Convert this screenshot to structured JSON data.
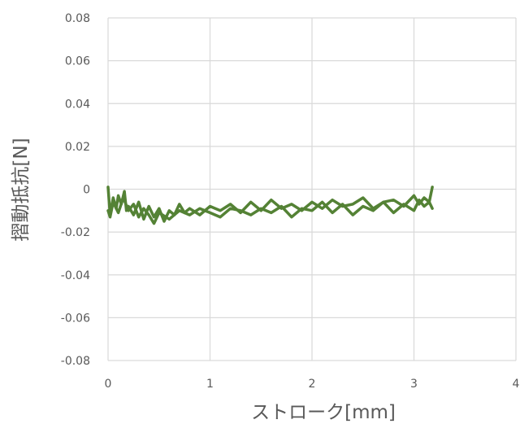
{
  "chart_data": {
    "type": "line",
    "xlabel": "ストローク[mm]",
    "ylabel": "摺動抵抗[N]",
    "xlim": [
      0,
      4
    ],
    "ylim": [
      -0.08,
      0.08
    ],
    "xticks": [
      "0",
      "1",
      "2",
      "3",
      "4"
    ],
    "yticks": [
      "0.08",
      "0.06",
      "0.04",
      "0.02",
      "0",
      "-0.02",
      "-0.04",
      "-0.06",
      "-0.08"
    ],
    "grid": true,
    "line_color": "#548235",
    "series": [
      {
        "x": [
          0.0,
          0.02,
          0.05,
          0.08,
          0.1,
          0.13,
          0.16,
          0.18,
          0.2,
          0.25,
          0.3,
          0.35,
          0.4,
          0.45,
          0.5,
          0.55,
          0.6,
          0.65,
          0.7,
          0.75,
          0.8,
          0.9,
          1.0,
          1.1,
          1.2,
          1.3,
          1.4,
          1.5,
          1.6,
          1.7,
          1.8,
          1.9,
          2.0,
          2.1,
          2.2,
          2.3,
          2.4,
          2.5,
          2.6,
          2.7,
          2.8,
          2.9,
          3.0,
          3.05,
          3.1,
          3.15,
          3.18
        ],
        "y": [
          0.001,
          -0.012,
          -0.004,
          -0.009,
          -0.003,
          -0.007,
          -0.001,
          -0.01,
          -0.008,
          -0.012,
          -0.006,
          -0.014,
          -0.008,
          -0.013,
          -0.009,
          -0.015,
          -0.01,
          -0.012,
          -0.007,
          -0.011,
          -0.009,
          -0.012,
          -0.008,
          -0.01,
          -0.007,
          -0.011,
          -0.006,
          -0.01,
          -0.005,
          -0.009,
          -0.007,
          -0.01,
          -0.006,
          -0.009,
          -0.005,
          -0.008,
          -0.007,
          -0.004,
          -0.009,
          -0.006,
          -0.005,
          -0.008,
          -0.003,
          -0.007,
          -0.004,
          -0.006,
          0.001
        ]
      },
      {
        "x": [
          3.18,
          3.15,
          3.1,
          3.05,
          3.0,
          2.9,
          2.8,
          2.7,
          2.6,
          2.5,
          2.4,
          2.3,
          2.2,
          2.1,
          2.0,
          1.9,
          1.8,
          1.7,
          1.6,
          1.5,
          1.4,
          1.3,
          1.2,
          1.1,
          1.0,
          0.9,
          0.8,
          0.7,
          0.6,
          0.5,
          0.45,
          0.4,
          0.35,
          0.3,
          0.25,
          0.2,
          0.15,
          0.1,
          0.05,
          0.02,
          0.0
        ],
        "y": [
          -0.009,
          -0.006,
          -0.008,
          -0.005,
          -0.01,
          -0.007,
          -0.011,
          -0.006,
          -0.01,
          -0.008,
          -0.012,
          -0.007,
          -0.011,
          -0.006,
          -0.01,
          -0.009,
          -0.013,
          -0.008,
          -0.011,
          -0.009,
          -0.012,
          -0.01,
          -0.009,
          -0.013,
          -0.011,
          -0.009,
          -0.012,
          -0.01,
          -0.014,
          -0.011,
          -0.016,
          -0.012,
          -0.009,
          -0.013,
          -0.007,
          -0.01,
          -0.004,
          -0.011,
          -0.006,
          -0.013,
          -0.01
        ]
      }
    ]
  }
}
